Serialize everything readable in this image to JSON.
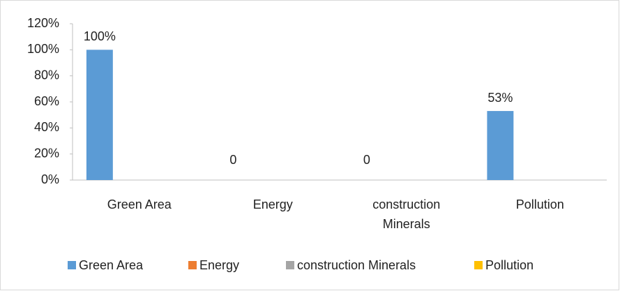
{
  "chart_data": {
    "type": "bar",
    "categories": [
      "Green Area",
      "Energy",
      "construction Minerals",
      "Pollution"
    ],
    "series": [
      {
        "name": "Green Area",
        "color": "#5b9bd5",
        "values": [
          100,
          0,
          0,
          53
        ],
        "value_labels": [
          "100%",
          "0",
          "0",
          "53%"
        ]
      },
      {
        "name": "Energy",
        "color": "#ed7d31",
        "values": [
          null,
          null,
          null,
          null
        ]
      },
      {
        "name": "construction Minerals",
        "color": "#a5a5a5",
        "values": [
          null,
          null,
          null,
          null
        ]
      },
      {
        "name": "Pollution",
        "color": "#ffc000",
        "values": [
          null,
          null,
          null,
          null
        ]
      }
    ],
    "ylim": [
      0,
      120
    ],
    "yticks": [
      {
        "value": 0,
        "label": "0%"
      },
      {
        "value": 20,
        "label": "20%"
      },
      {
        "value": 40,
        "label": "40%"
      },
      {
        "value": 60,
        "label": "60%"
      },
      {
        "value": 80,
        "label": "80%"
      },
      {
        "value": 100,
        "label": "100%"
      },
      {
        "value": 120,
        "label": "120%"
      }
    ],
    "legend": "bottom"
  }
}
